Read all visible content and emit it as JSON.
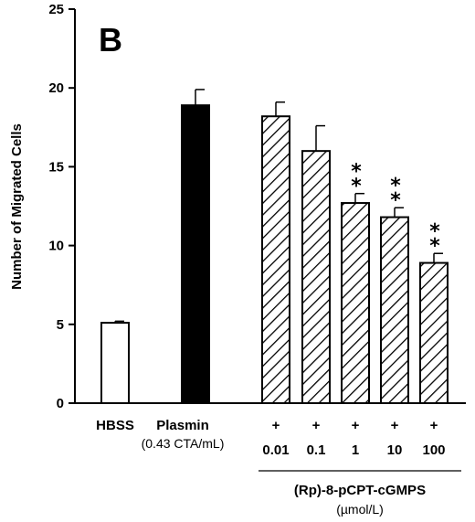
{
  "chart_data": {
    "type": "bar",
    "panel_label": "B",
    "ylabel": "Number of Migrated Cells",
    "ylim": [
      0,
      25
    ],
    "yticks": [
      0,
      5,
      10,
      15,
      20,
      25
    ],
    "categories": [
      "HBSS",
      "Plasmin",
      "0.01",
      "0.1",
      "1",
      "10",
      "100"
    ],
    "category_sublabels": [
      "",
      "(0.43 CTA/mL)",
      "",
      "",
      "",
      "",
      ""
    ],
    "plus_row": [
      "",
      "",
      "+",
      "+",
      "+",
      "+",
      "+"
    ],
    "values": [
      5.1,
      18.9,
      18.2,
      16.0,
      12.7,
      11.8,
      8.9
    ],
    "errors": [
      0.1,
      1.0,
      0.9,
      1.6,
      0.6,
      0.6,
      0.6
    ],
    "fills": [
      "white",
      "black",
      "hatched",
      "hatched",
      "hatched",
      "hatched",
      "hatched"
    ],
    "significance": [
      "",
      "",
      "",
      "",
      "**",
      "**",
      "**"
    ],
    "group_label": "(Rp)-8-pCPT-cGMPS",
    "group_unit": "(µmol/L)"
  },
  "colors": {
    "axis": "#000000",
    "bar_fill_black": "#000000",
    "bar_fill_white": "#ffffff"
  }
}
